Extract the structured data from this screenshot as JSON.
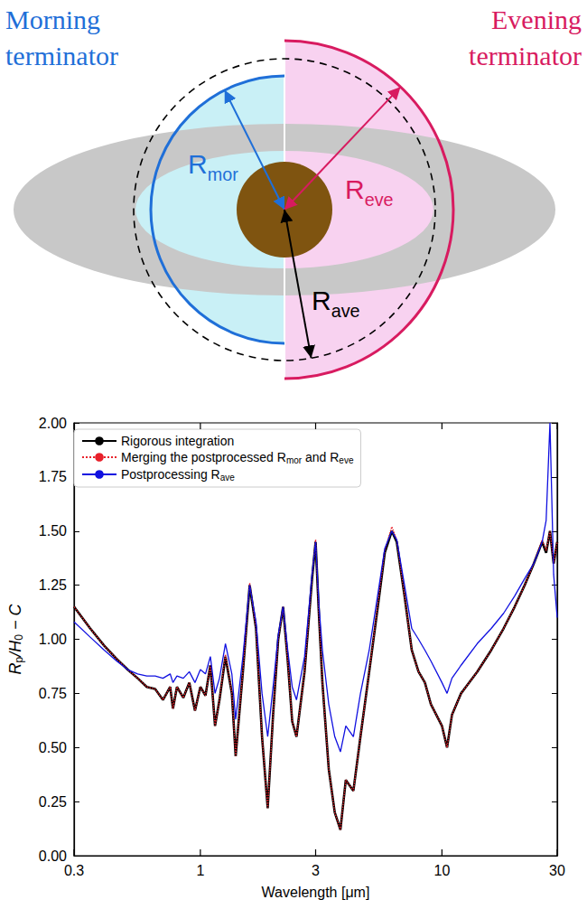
{
  "diagram": {
    "morning": {
      "title_lines": [
        "Morning",
        "terminator"
      ],
      "radius_label": [
        {
          "text": "R"
        },
        {
          "text": "mor",
          "sub": true
        }
      ]
    },
    "evening": {
      "title_lines": [
        "Evening",
        "terminator"
      ],
      "radius_label": [
        {
          "text": "R"
        },
        {
          "text": "eve",
          "sub": true
        }
      ]
    },
    "average": {
      "radius_label": [
        {
          "text": "R"
        },
        {
          "text": "ave",
          "sub": true
        }
      ]
    }
  },
  "chart_data": {
    "type": "line",
    "xlabel": "Wavelength [μm]",
    "ylabel": [
      {
        "text": "R"
      },
      {
        "text": "p",
        "sub": true
      },
      {
        "text": "/H"
      },
      {
        "text": "0",
        "sub": true
      },
      {
        "text": " − C"
      }
    ],
    "log": "x",
    "xlim": [
      0.3,
      30
    ],
    "xticks": [
      0.3,
      1,
      3,
      10,
      30
    ],
    "ylim": [
      0,
      2
    ],
    "yticks": [
      {
        "value": 0,
        "label": "0.00"
      },
      {
        "value": 0.25,
        "label": "0.25"
      },
      {
        "value": 0.5,
        "label": "0.50"
      },
      {
        "value": 0.75,
        "label": "0.75"
      },
      {
        "value": 1,
        "label": "1.00"
      },
      {
        "value": 1.25,
        "label": "1.25"
      },
      {
        "value": 1.5,
        "label": "1.50"
      },
      {
        "value": 1.75,
        "label": "1.75"
      },
      {
        "value": 2,
        "label": "2.00"
      }
    ],
    "grid": false,
    "legend": "upper left",
    "x": [
      0.3,
      0.35,
      0.4,
      0.45,
      0.5,
      0.55,
      0.6,
      0.65,
      0.7,
      0.75,
      0.77,
      0.8,
      0.85,
      0.9,
      0.95,
      1.0,
      1.05,
      1.1,
      1.15,
      1.2,
      1.27,
      1.35,
      1.4,
      1.5,
      1.6,
      1.7,
      1.8,
      1.9,
      2.0,
      2.1,
      2.2,
      2.3,
      2.4,
      2.5,
      2.7,
      2.9,
      3.0,
      3.1,
      3.2,
      3.4,
      3.6,
      3.8,
      4.0,
      4.3,
      4.6,
      5.0,
      5.5,
      5.8,
      6.2,
      6.5,
      7.0,
      7.5,
      8.0,
      8.5,
      9.0,
      10,
      10.5,
      11,
      12,
      14,
      16,
      18,
      20,
      22,
      24,
      26,
      27,
      28,
      29,
      30
    ],
    "series": [
      {
        "name": "Rigorous integration",
        "color": "#000000",
        "line_style": "solid",
        "values": [
          1.15,
          1.05,
          0.97,
          0.91,
          0.86,
          0.82,
          0.78,
          0.77,
          0.72,
          0.78,
          0.68,
          0.78,
          0.73,
          0.8,
          0.67,
          0.78,
          0.74,
          0.88,
          0.6,
          0.72,
          0.92,
          0.75,
          0.46,
          0.85,
          1.25,
          1.05,
          0.55,
          0.22,
          0.65,
          1.0,
          1.15,
          0.9,
          0.62,
          0.55,
          0.85,
          1.28,
          1.45,
          1.1,
          0.8,
          0.4,
          0.2,
          0.12,
          0.35,
          0.3,
          0.55,
          0.85,
          1.2,
          1.4,
          1.5,
          1.45,
          1.2,
          0.95,
          0.85,
          0.8,
          0.7,
          0.6,
          0.5,
          0.65,
          0.75,
          0.85,
          0.95,
          1.05,
          1.15,
          1.25,
          1.35,
          1.45,
          1.4,
          1.5,
          1.35,
          1.45
        ]
      },
      {
        "name": "Merging the postprocessed Rmor and Reve",
        "name_parts": [
          {
            "text": "Merging the postprocessed R"
          },
          {
            "text": "mor",
            "sub": true
          },
          {
            "text": " and R"
          },
          {
            "text": "eve",
            "sub": true
          }
        ],
        "color": "#e8202a",
        "line_style": "dotted",
        "values": [
          1.15,
          1.05,
          0.97,
          0.91,
          0.86,
          0.82,
          0.78,
          0.77,
          0.72,
          0.78,
          0.68,
          0.78,
          0.73,
          0.8,
          0.67,
          0.78,
          0.74,
          0.88,
          0.6,
          0.72,
          0.93,
          0.75,
          0.46,
          0.85,
          1.26,
          1.05,
          0.55,
          0.22,
          0.65,
          1.0,
          1.15,
          0.9,
          0.62,
          0.55,
          0.85,
          1.29,
          1.46,
          1.1,
          0.8,
          0.4,
          0.2,
          0.12,
          0.35,
          0.3,
          0.55,
          0.85,
          1.21,
          1.41,
          1.52,
          1.46,
          1.2,
          0.95,
          0.85,
          0.8,
          0.7,
          0.6,
          0.5,
          0.65,
          0.75,
          0.85,
          0.95,
          1.05,
          1.15,
          1.25,
          1.35,
          1.46,
          1.41,
          1.5,
          1.35,
          1.45
        ]
      },
      {
        "name": "Postprocessing Rave",
        "name_parts": [
          {
            "text": "Postprocessing R"
          },
          {
            "text": "ave",
            "sub": true
          }
        ],
        "color": "#1010e0",
        "line_style": "solid",
        "values": [
          1.08,
          1.01,
          0.95,
          0.9,
          0.86,
          0.84,
          0.83,
          0.83,
          0.82,
          0.84,
          0.8,
          0.83,
          0.82,
          0.85,
          0.8,
          0.86,
          0.84,
          0.92,
          0.75,
          0.82,
          0.98,
          0.84,
          0.63,
          0.92,
          1.25,
          1.08,
          0.75,
          0.55,
          0.78,
          1.02,
          1.15,
          0.95,
          0.78,
          0.72,
          0.92,
          1.3,
          1.45,
          1.15,
          0.95,
          0.7,
          0.55,
          0.48,
          0.6,
          0.55,
          0.75,
          0.95,
          1.25,
          1.42,
          1.5,
          1.46,
          1.25,
          1.05,
          1.0,
          0.95,
          0.9,
          0.8,
          0.75,
          0.82,
          0.88,
          0.98,
          1.05,
          1.12,
          1.2,
          1.28,
          1.35,
          1.45,
          1.55,
          2.0,
          1.3,
          1.1
        ]
      }
    ]
  }
}
